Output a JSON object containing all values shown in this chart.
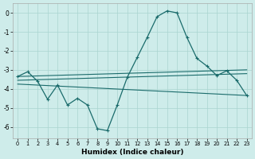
{
  "xlabel": "Humidex (Indice chaleur)",
  "xlim": [
    -0.5,
    23.5
  ],
  "ylim": [
    -6.6,
    0.5
  ],
  "yticks": [
    0,
    -1,
    -2,
    -3,
    -4,
    -5,
    -6
  ],
  "xticks": [
    0,
    1,
    2,
    3,
    4,
    5,
    6,
    7,
    8,
    9,
    10,
    11,
    12,
    13,
    14,
    15,
    16,
    17,
    18,
    19,
    20,
    21,
    22,
    23
  ],
  "bg_color": "#ceecea",
  "grid_color": "#aad4d0",
  "line_color": "#1a6b6b",
  "main_x": [
    0,
    1,
    2,
    3,
    4,
    5,
    6,
    7,
    8,
    9,
    10,
    11,
    12,
    13,
    14,
    15,
    16,
    17,
    18,
    19,
    20,
    21,
    22,
    23
  ],
  "main_y": [
    -3.35,
    -3.1,
    -3.6,
    -4.55,
    -3.8,
    -4.85,
    -4.5,
    -4.85,
    -6.1,
    -6.2,
    -4.85,
    -3.4,
    -2.35,
    -1.3,
    -0.2,
    0.1,
    0.0,
    -1.3,
    -2.4,
    -2.8,
    -3.3,
    -3.05,
    -3.55,
    -4.35
  ],
  "line2_x": [
    0,
    23
  ],
  "line2_y": [
    -3.35,
    -3.0
  ],
  "line3_x": [
    0,
    23
  ],
  "line3_y": [
    -3.55,
    -3.2
  ],
  "line4_x": [
    0,
    23
  ],
  "line4_y": [
    -3.75,
    -4.35
  ]
}
